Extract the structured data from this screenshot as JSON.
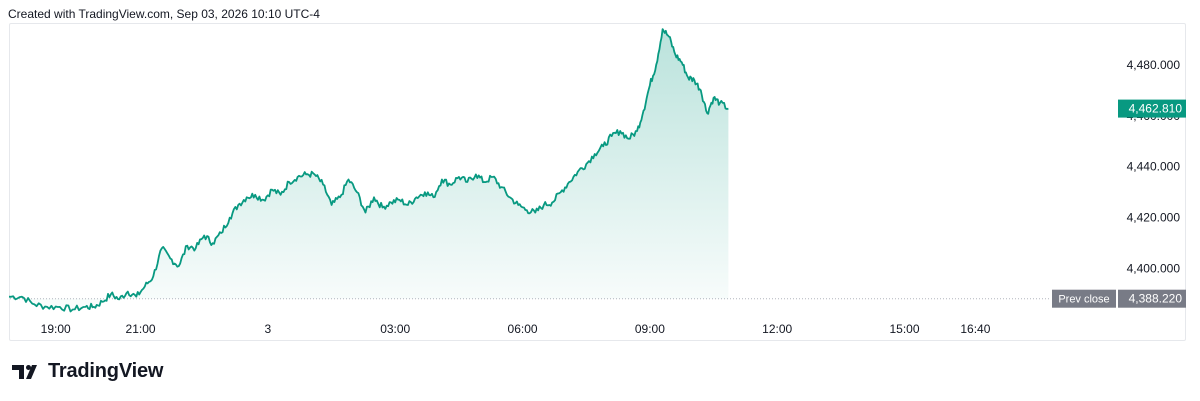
{
  "header": {
    "created_text": "Created with TradingView.com, Sep 03, 2026 10:10 UTC-4"
  },
  "brand": {
    "name": "TradingView"
  },
  "price_label": {
    "value": "4,462.810",
    "color": "#089981"
  },
  "prev_close": {
    "label": "Prev close",
    "value": "4,388.220",
    "color": "#787b86"
  },
  "colors": {
    "line": "#089981",
    "fill_top": "#089981",
    "axis_text": "#131722"
  },
  "chart_data": {
    "type": "area",
    "title": "",
    "xlabel": "",
    "ylabel": "",
    "ylim": [
      4383,
      4496
    ],
    "xlim_hours": [
      17.9,
      41.25
    ],
    "yticks": [
      {
        "value": 4400,
        "label": "4,400.000"
      },
      {
        "value": 4420,
        "label": "4,420.000"
      },
      {
        "value": 4440,
        "label": "4,440.000"
      },
      {
        "value": 4460,
        "label": "4,460.000"
      },
      {
        "value": 4480,
        "label": "4,480.000"
      }
    ],
    "xticks": [
      {
        "t": 19.0,
        "label": "19:00"
      },
      {
        "t": 21.0,
        "label": "21:00"
      },
      {
        "t": 24.0,
        "label": "3"
      },
      {
        "t": 27.0,
        "label": "03:00"
      },
      {
        "t": 30.0,
        "label": "06:00"
      },
      {
        "t": 33.0,
        "label": "09:00"
      },
      {
        "t": 36.0,
        "label": "12:00"
      },
      {
        "t": 39.0,
        "label": "15:00"
      },
      {
        "t": 40.67,
        "label": "16:40"
      }
    ],
    "prev_close": 4388.22,
    "last": 4462.81,
    "grid": false,
    "series": [
      {
        "x": [
          17.9,
          18.2,
          18.5,
          18.8,
          19.1,
          19.4,
          19.7,
          19.9,
          20.1,
          20.3,
          20.5,
          20.7,
          20.9,
          21.1,
          21.3,
          21.5,
          21.7,
          21.9,
          22.1,
          22.3,
          22.5,
          22.7,
          22.9,
          23.1,
          23.3,
          23.5,
          23.7,
          23.9,
          24.1,
          24.3,
          24.5,
          24.7,
          24.9,
          25.1,
          25.3,
          25.5,
          25.7,
          25.9,
          26.1,
          26.3,
          26.5,
          26.7,
          26.9,
          27.1,
          27.3,
          27.5,
          27.7,
          27.9,
          28.1,
          28.3,
          28.5,
          28.7,
          28.9,
          29.1,
          29.3,
          29.5,
          29.7,
          29.9,
          30.1,
          30.3,
          30.5,
          30.7,
          30.9,
          31.1,
          31.3,
          31.5,
          31.7,
          31.9,
          32.1,
          32.3,
          32.5,
          32.7,
          32.85,
          33.0,
          33.15,
          33.3,
          33.45,
          33.6,
          33.75,
          33.9,
          34.05,
          34.2,
          34.35,
          34.5,
          34.65,
          34.85
        ],
        "y": [
          4389,
          4389,
          4386,
          4385,
          4385,
          4384,
          4385,
          4385,
          4387,
          4390,
          4388,
          4391,
          4389,
          4393,
          4397,
          4408,
          4404,
          4401,
          4409,
          4408,
          4413,
          4410,
          4414,
          4420,
          4425,
          4428,
          4429,
          4427,
          4431,
          4429,
          4434,
          4436,
          4437,
          4437,
          4433,
          4425,
          4428,
          4435,
          4430,
          4422,
          4428,
          4424,
          4426,
          4427,
          4425,
          4428,
          4430,
          4428,
          4435,
          4433,
          4436,
          4434,
          4437,
          4434,
          4436,
          4432,
          4428,
          4425,
          4423,
          4422,
          4425,
          4426,
          4430,
          4434,
          4438,
          4441,
          4445,
          4448,
          4452,
          4454,
          4451,
          4454,
          4462,
          4472,
          4480,
          4494,
          4491,
          4484,
          4481,
          4475,
          4474,
          4470,
          4461,
          4467,
          4465,
          4462.81
        ]
      }
    ]
  }
}
